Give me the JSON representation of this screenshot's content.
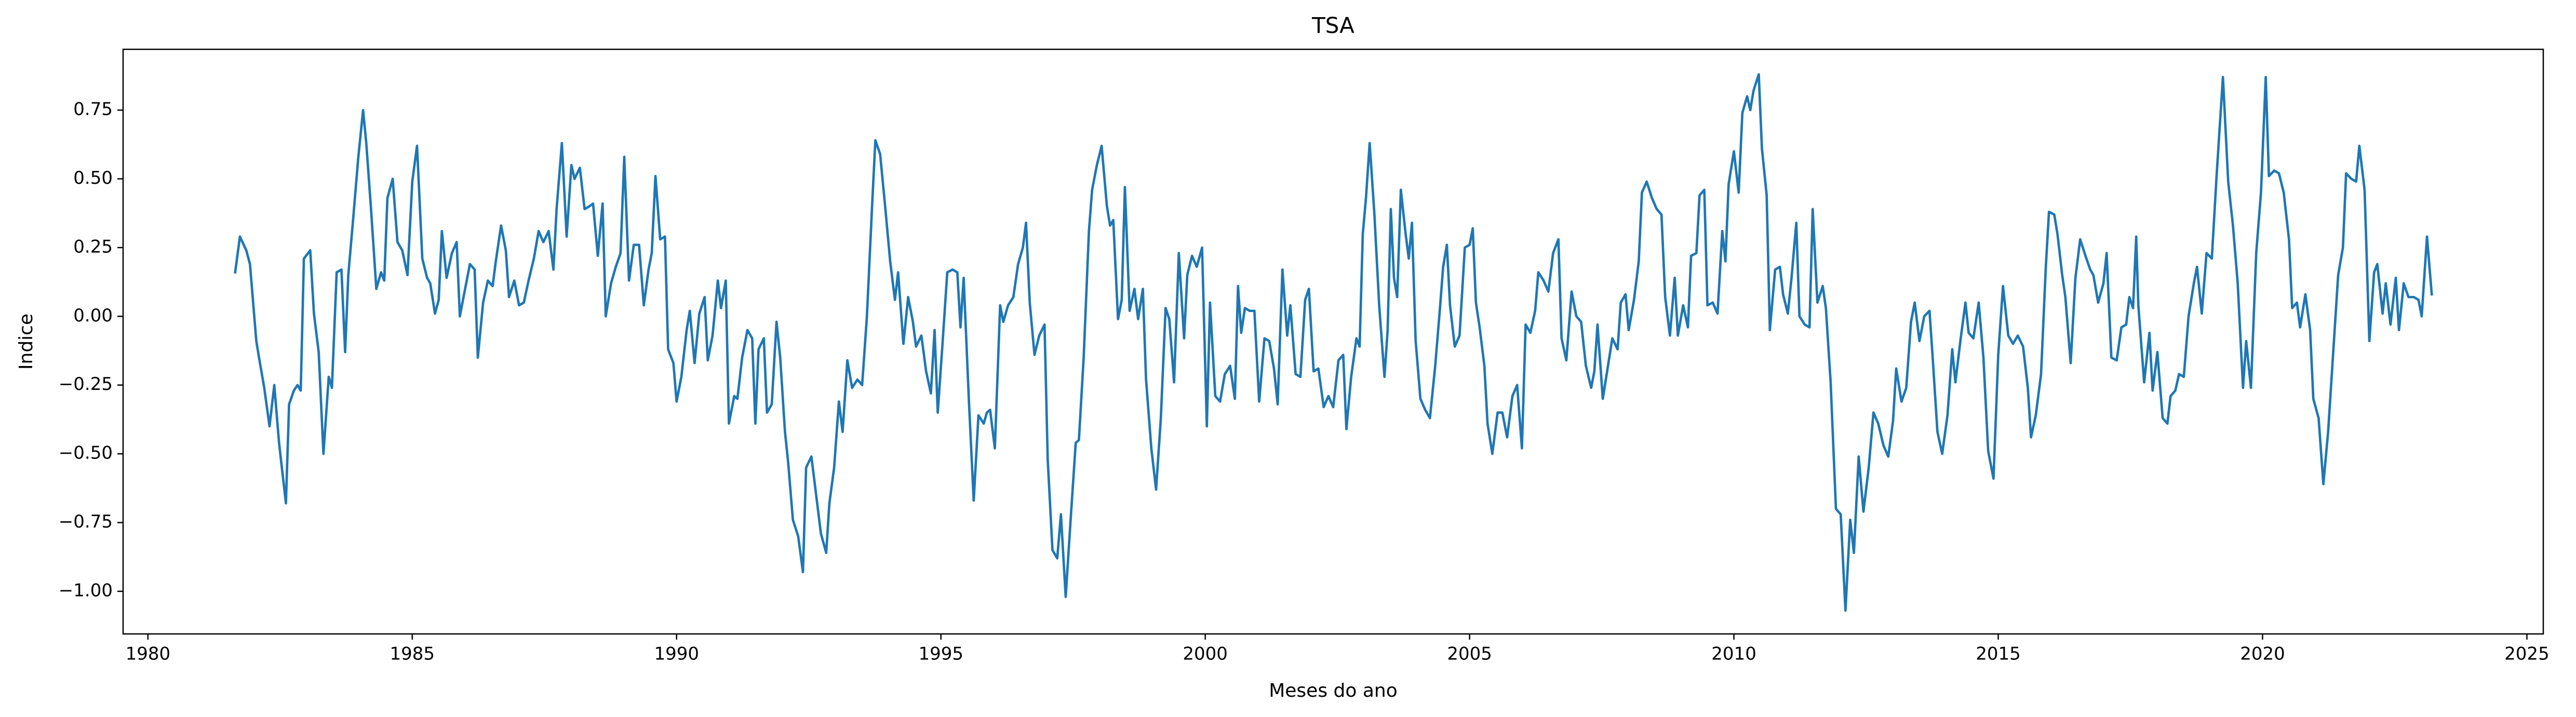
{
  "chart_data": {
    "type": "line",
    "title": "TSA",
    "xlabel": "Meses do ano",
    "ylabel": "Indice",
    "xlim": [
      1979.53,
      2025.31
    ],
    "ylim": [
      -1.155,
      0.971
    ],
    "xticks": [
      1980,
      1985,
      1990,
      1995,
      2000,
      2005,
      2010,
      2015,
      2020,
      2025
    ],
    "yticks": [
      {
        "value": -1.0,
        "label": "−1.00"
      },
      {
        "value": -0.75,
        "label": "−0.75"
      },
      {
        "value": -0.5,
        "label": "−0.50"
      },
      {
        "value": -0.25,
        "label": "−0.25"
      },
      {
        "value": 0.0,
        "label": "0.00"
      },
      {
        "value": 0.25,
        "label": "0.25"
      },
      {
        "value": 0.5,
        "label": "0.50"
      },
      {
        "value": 0.75,
        "label": "0.75"
      }
    ],
    "grid": false,
    "x": [
      1981.65,
      1981.74,
      1981.86,
      1981.93,
      1981.99,
      1982.05,
      1982.11,
      1982.2,
      1982.3,
      1982.39,
      1982.48,
      1982.61,
      1982.67,
      1982.76,
      1982.83,
      1982.89,
      1982.95,
      1983.07,
      1983.14,
      1983.23,
      1983.32,
      1983.42,
      1983.48,
      1983.57,
      1983.66,
      1983.73,
      1983.79,
      1983.88,
      1983.98,
      1984.07,
      1984.13,
      1984.22,
      1984.32,
      1984.41,
      1984.47,
      1984.53,
      1984.63,
      1984.72,
      1984.81,
      1984.91,
      1985.0,
      1985.09,
      1985.19,
      1985.28,
      1985.34,
      1985.43,
      1985.5,
      1985.56,
      1985.65,
      1985.75,
      1985.84,
      1985.9,
      1985.99,
      1986.09,
      1986.18,
      1986.24,
      1986.34,
      1986.43,
      1986.52,
      1986.58,
      1986.68,
      1986.77,
      1986.83,
      1986.93,
      1987.02,
      1987.11,
      1987.2,
      1987.3,
      1987.39,
      1987.48,
      1987.58,
      1987.67,
      1987.73,
      1987.83,
      1987.92,
      1988.01,
      1988.07,
      1988.17,
      1988.26,
      1988.35,
      1988.42,
      1988.51,
      1988.6,
      1988.66,
      1988.76,
      1988.85,
      1988.94,
      1989.01,
      1989.1,
      1989.19,
      1989.29,
      1989.38,
      1989.47,
      1989.53,
      1989.6,
      1989.69,
      1989.78,
      1989.84,
      1989.94,
      1990.0,
      1990.09,
      1990.19,
      1990.25,
      1990.34,
      1990.43,
      1990.53,
      1990.59,
      1990.68,
      1990.78,
      1990.84,
      1990.93,
      1990.99,
      1991.09,
      1991.15,
      1991.24,
      1991.34,
      1991.43,
      1991.49,
      1991.55,
      1991.65,
      1991.71,
      1991.8,
      1991.89,
      1991.96,
      1992.05,
      1992.11,
      1992.2,
      1992.3,
      1992.39,
      1992.45,
      1992.55,
      1992.64,
      1992.73,
      1992.83,
      1992.89,
      1992.98,
      1993.07,
      1993.14,
      1993.23,
      1993.32,
      1993.42,
      1993.51,
      1993.6,
      1993.7,
      1993.76,
      1993.85,
      1993.94,
      1994.04,
      1994.13,
      1994.19,
      1994.29,
      1994.38,
      1994.47,
      1994.53,
      1994.63,
      1994.72,
      1994.81,
      1994.88,
      1994.94,
      1995.03,
      1995.12,
      1995.22,
      1995.31,
      1995.37,
      1995.43,
      1995.53,
      1995.62,
      1995.71,
      1995.81,
      1995.87,
      1995.93,
      1996.02,
      1996.12,
      1996.18,
      1996.27,
      1996.37,
      1996.46,
      1996.55,
      1996.61,
      1996.68,
      1996.77,
      1996.86,
      1996.96,
      1997.02,
      1997.11,
      1997.2,
      1997.27,
      1997.36,
      1997.45,
      1997.55,
      1997.61,
      1997.7,
      1997.8,
      1997.86,
      1997.95,
      1998.04,
      1998.14,
      1998.2,
      1998.26,
      1998.35,
      1998.42,
      1998.48,
      1998.57,
      1998.66,
      1998.73,
      1998.82,
      1998.88,
      1998.98,
      1999.07,
      1999.16,
      1999.25,
      1999.32,
      1999.41,
      1999.5,
      1999.6,
      1999.66,
      1999.75,
      1999.84,
      1999.94,
      2000.03,
      2000.09,
      2000.19,
      2000.28,
      2000.37,
      2000.47,
      2000.56,
      2000.62,
      2000.68,
      2000.75,
      2000.84,
      2000.93,
      2001.02,
      2001.12,
      2001.21,
      2001.3,
      2001.37,
      2001.46,
      2001.55,
      2001.61,
      2001.71,
      2001.8,
      2001.89,
      2001.96,
      2002.05,
      2002.14,
      2002.24,
      2002.33,
      2002.42,
      2002.52,
      2002.61,
      2002.67,
      2002.76,
      2002.86,
      2002.92,
      2002.98,
      2003.04,
      2003.11,
      2003.2,
      2003.29,
      2003.39,
      2003.45,
      2003.51,
      2003.57,
      2003.63,
      2003.7,
      2003.79,
      2003.85,
      2003.91,
      2003.98,
      2004.07,
      2004.16,
      2004.25,
      2004.35,
      2004.44,
      2004.5,
      2004.57,
      2004.63,
      2004.72,
      2004.81,
      2004.91,
      2005.0,
      2005.06,
      2005.12,
      2005.19,
      2005.28,
      2005.34,
      2005.43,
      2005.53,
      2005.62,
      2005.71,
      2005.81,
      2005.9,
      2005.99,
      2006.06,
      2006.15,
      2006.24,
      2006.3,
      2006.4,
      2006.49,
      2006.58,
      2006.68,
      2006.74,
      2006.83,
      2006.93,
      2007.02,
      2007.11,
      2007.2,
      2007.3,
      2007.36,
      2007.42,
      2007.52,
      2007.61,
      2007.7,
      2007.8,
      2007.86,
      2007.95,
      2008.01,
      2008.11,
      2008.2,
      2008.26,
      2008.35,
      2008.45,
      2008.54,
      2008.63,
      2008.7,
      2008.79,
      2008.88,
      2008.94,
      2009.04,
      2009.13,
      2009.19,
      2009.29,
      2009.35,
      2009.44,
      2009.5,
      2009.6,
      2009.69,
      2009.78,
      2009.84,
      2009.9,
      2010.0,
      2010.09,
      2010.16,
      2010.25,
      2010.31,
      2010.37,
      2010.47,
      2010.53,
      2010.62,
      2010.68,
      2010.78,
      2010.87,
      2010.93,
      2011.02,
      2011.09,
      2011.18,
      2011.24,
      2011.34,
      2011.43,
      2011.49,
      2011.58,
      2011.68,
      2011.74,
      2011.83,
      2011.93,
      2012.02,
      2012.11,
      2012.2,
      2012.27,
      2012.36,
      2012.45,
      2012.55,
      2012.64,
      2012.73,
      2012.83,
      2012.92,
      2013.01,
      2013.07,
      2013.17,
      2013.26,
      2013.35,
      2013.42,
      2013.51,
      2013.6,
      2013.7,
      2013.76,
      2013.85,
      2013.94,
      2014.04,
      2014.13,
      2014.19,
      2014.29,
      2014.38,
      2014.44,
      2014.53,
      2014.63,
      2014.72,
      2014.81,
      2014.91,
      2015.0,
      2015.09,
      2015.19,
      2015.28,
      2015.37,
      2015.47,
      2015.56,
      2015.62,
      2015.71,
      2015.81,
      2015.9,
      2015.96,
      2016.06,
      2016.12,
      2016.21,
      2016.27,
      2016.37,
      2016.46,
      2016.55,
      2016.65,
      2016.74,
      2016.8,
      2016.89,
      2016.99,
      2017.05,
      2017.14,
      2017.24,
      2017.33,
      2017.42,
      2017.48,
      2017.55,
      2017.61,
      2017.65,
      2017.76,
      2017.86,
      2017.92,
      2018.01,
      2018.11,
      2018.2,
      2018.26,
      2018.35,
      2018.42,
      2018.51,
      2018.6,
      2018.7,
      2018.76,
      2018.85,
      2018.94,
      2019.04,
      2019.13,
      2019.25,
      2019.35,
      2019.44,
      2019.53,
      2019.63,
      2019.69,
      2019.78,
      2019.88,
      2019.97,
      2020.06,
      2020.12,
      2020.22,
      2020.31,
      2020.4,
      2020.5,
      2020.56,
      2020.65,
      2020.71,
      2020.81,
      2020.9,
      2020.96,
      2021.06,
      2021.15,
      2021.24,
      2021.34,
      2021.43,
      2021.52,
      2021.58,
      2021.68,
      2021.77,
      2021.83,
      2021.93,
      2022.02,
      2022.11,
      2022.17,
      2022.27,
      2022.33,
      2022.42,
      2022.52,
      2022.58,
      2022.67,
      2022.76,
      2022.86,
      2022.95,
      2023.01,
      2023.11,
      2023.2
    ],
    "series": [
      {
        "name": "TSA",
        "color": "#1f77b4",
        "values": [
          0.16,
          0.29,
          0.24,
          0.19,
          0.05,
          -0.09,
          -0.16,
          -0.26,
          -0.4,
          -0.25,
          -0.46,
          -0.68,
          -0.32,
          -0.27,
          -0.25,
          -0.27,
          0.21,
          0.24,
          0.01,
          -0.13,
          -0.5,
          -0.22,
          -0.26,
          0.16,
          0.17,
          -0.13,
          0.15,
          0.35,
          0.58,
          0.75,
          0.63,
          0.39,
          0.1,
          0.16,
          0.13,
          0.43,
          0.5,
          0.27,
          0.24,
          0.15,
          0.49,
          0.62,
          0.21,
          0.14,
          0.12,
          0.01,
          0.06,
          0.31,
          0.14,
          0.23,
          0.27,
          0.0,
          0.09,
          0.19,
          0.17,
          -0.15,
          0.05,
          0.13,
          0.11,
          0.2,
          0.33,
          0.24,
          0.07,
          0.13,
          0.04,
          0.05,
          0.13,
          0.21,
          0.31,
          0.27,
          0.31,
          0.17,
          0.39,
          0.63,
          0.29,
          0.55,
          0.5,
          0.54,
          0.39,
          0.4,
          0.41,
          0.22,
          0.41,
          0.0,
          0.12,
          0.18,
          0.23,
          0.58,
          0.13,
          0.26,
          0.26,
          0.04,
          0.17,
          0.23,
          0.51,
          0.28,
          0.29,
          -0.12,
          -0.17,
          -0.31,
          -0.22,
          -0.05,
          0.02,
          -0.17,
          0.01,
          0.07,
          -0.16,
          -0.07,
          0.13,
          0.03,
          0.13,
          -0.39,
          -0.29,
          -0.3,
          -0.15,
          -0.05,
          -0.08,
          -0.39,
          -0.12,
          -0.08,
          -0.35,
          -0.32,
          -0.02,
          -0.15,
          -0.42,
          -0.53,
          -0.74,
          -0.8,
          -0.93,
          -0.55,
          -0.51,
          -0.65,
          -0.79,
          -0.86,
          -0.68,
          -0.55,
          -0.31,
          -0.42,
          -0.16,
          -0.26,
          -0.23,
          -0.25,
          0.0,
          0.41,
          0.64,
          0.59,
          0.41,
          0.2,
          0.06,
          0.16,
          -0.1,
          0.07,
          -0.02,
          -0.11,
          -0.07,
          -0.2,
          -0.28,
          -0.05,
          -0.35,
          -0.1,
          0.16,
          0.17,
          0.16,
          -0.04,
          0.14,
          -0.31,
          -0.67,
          -0.36,
          -0.39,
          -0.35,
          -0.34,
          -0.48,
          0.04,
          -0.02,
          0.04,
          0.07,
          0.19,
          0.25,
          0.34,
          0.05,
          -0.14,
          -0.07,
          -0.03,
          -0.52,
          -0.85,
          -0.88,
          -0.72,
          -1.02,
          -0.75,
          -0.46,
          -0.45,
          -0.15,
          0.31,
          0.46,
          0.55,
          0.62,
          0.4,
          0.33,
          0.35,
          -0.01,
          0.06,
          0.47,
          0.02,
          0.1,
          -0.01,
          0.1,
          -0.23,
          -0.48,
          -0.63,
          -0.37,
          0.03,
          -0.01,
          -0.24,
          0.23,
          -0.08,
          0.15,
          0.22,
          0.18,
          0.25,
          -0.4,
          0.05,
          -0.29,
          -0.31,
          -0.21,
          -0.18,
          -0.3,
          0.11,
          -0.06,
          0.03,
          0.02,
          0.02,
          -0.31,
          -0.08,
          -0.09,
          -0.19,
          -0.32,
          0.17,
          -0.07,
          0.04,
          -0.21,
          -0.22,
          0.06,
          0.1,
          -0.2,
          -0.19,
          -0.33,
          -0.29,
          -0.33,
          -0.16,
          -0.14,
          -0.41,
          -0.22,
          -0.08,
          -0.11,
          0.3,
          0.43,
          0.63,
          0.37,
          0.04,
          -0.22,
          -0.05,
          0.39,
          0.14,
          0.07,
          0.46,
          0.3,
          0.21,
          0.34,
          -0.09,
          -0.3,
          -0.34,
          -0.37,
          -0.18,
          0.03,
          0.18,
          0.26,
          0.04,
          -0.11,
          -0.07,
          0.25,
          0.26,
          0.32,
          0.05,
          -0.04,
          -0.18,
          -0.39,
          -0.5,
          -0.35,
          -0.35,
          -0.44,
          -0.29,
          -0.25,
          -0.48,
          -0.03,
          -0.06,
          0.02,
          0.16,
          0.13,
          0.09,
          0.23,
          0.28,
          -0.08,
          -0.16,
          0.09,
          0.0,
          -0.02,
          -0.18,
          -0.26,
          -0.2,
          -0.03,
          -0.3,
          -0.19,
          -0.08,
          -0.12,
          0.05,
          0.08,
          -0.05,
          0.06,
          0.2,
          0.45,
          0.49,
          0.43,
          0.39,
          0.37,
          0.07,
          -0.07,
          0.14,
          -0.07,
          0.04,
          -0.04,
          0.22,
          0.23,
          0.44,
          0.46,
          0.04,
          0.05,
          0.01,
          0.31,
          0.2,
          0.48,
          0.6,
          0.45,
          0.74,
          0.8,
          0.75,
          0.82,
          0.88,
          0.61,
          0.44,
          -0.05,
          0.17,
          0.18,
          0.08,
          0.01,
          0.14,
          0.34,
          0.0,
          -0.03,
          -0.04,
          0.39,
          0.05,
          0.11,
          0.03,
          -0.24,
          -0.7,
          -0.72,
          -1.07,
          -0.74,
          -0.86,
          -0.51,
          -0.71,
          -0.55,
          -0.35,
          -0.39,
          -0.47,
          -0.51,
          -0.38,
          -0.19,
          -0.31,
          -0.26,
          -0.02,
          0.05,
          -0.09,
          0.0,
          0.02,
          -0.15,
          -0.42,
          -0.5,
          -0.36,
          -0.12,
          -0.24,
          -0.08,
          0.05,
          -0.06,
          -0.08,
          0.05,
          -0.15,
          -0.49,
          -0.59,
          -0.14,
          0.11,
          -0.07,
          -0.1,
          -0.07,
          -0.11,
          -0.26,
          -0.44,
          -0.36,
          -0.21,
          0.18,
          0.38,
          0.37,
          0.3,
          0.15,
          0.07,
          -0.17,
          0.14,
          0.28,
          0.22,
          0.17,
          0.15,
          0.05,
          0.12,
          0.23,
          -0.15,
          -0.16,
          -0.04,
          -0.03,
          0.07,
          0.03,
          0.29,
          0.04,
          -0.24,
          -0.06,
          -0.27,
          -0.13,
          -0.37,
          -0.39,
          -0.29,
          -0.27,
          -0.21,
          -0.22,
          0.0,
          0.12,
          0.18,
          0.01,
          0.23,
          0.21,
          0.51,
          0.87,
          0.49,
          0.33,
          0.12,
          -0.26,
          -0.09,
          -0.26,
          0.23,
          0.45,
          0.87,
          0.51,
          0.53,
          0.52,
          0.45,
          0.28,
          0.03,
          0.05,
          -0.04,
          0.08,
          -0.05,
          -0.3,
          -0.37,
          -0.61,
          -0.42,
          -0.12,
          0.15,
          0.25,
          0.52,
          0.5,
          0.49,
          0.62,
          0.46,
          -0.09,
          0.16,
          0.19,
          0.01,
          0.12,
          -0.03,
          0.14,
          -0.05,
          0.12,
          0.07,
          0.07,
          0.06,
          0.0,
          0.29,
          0.08
        ]
      }
    ]
  }
}
